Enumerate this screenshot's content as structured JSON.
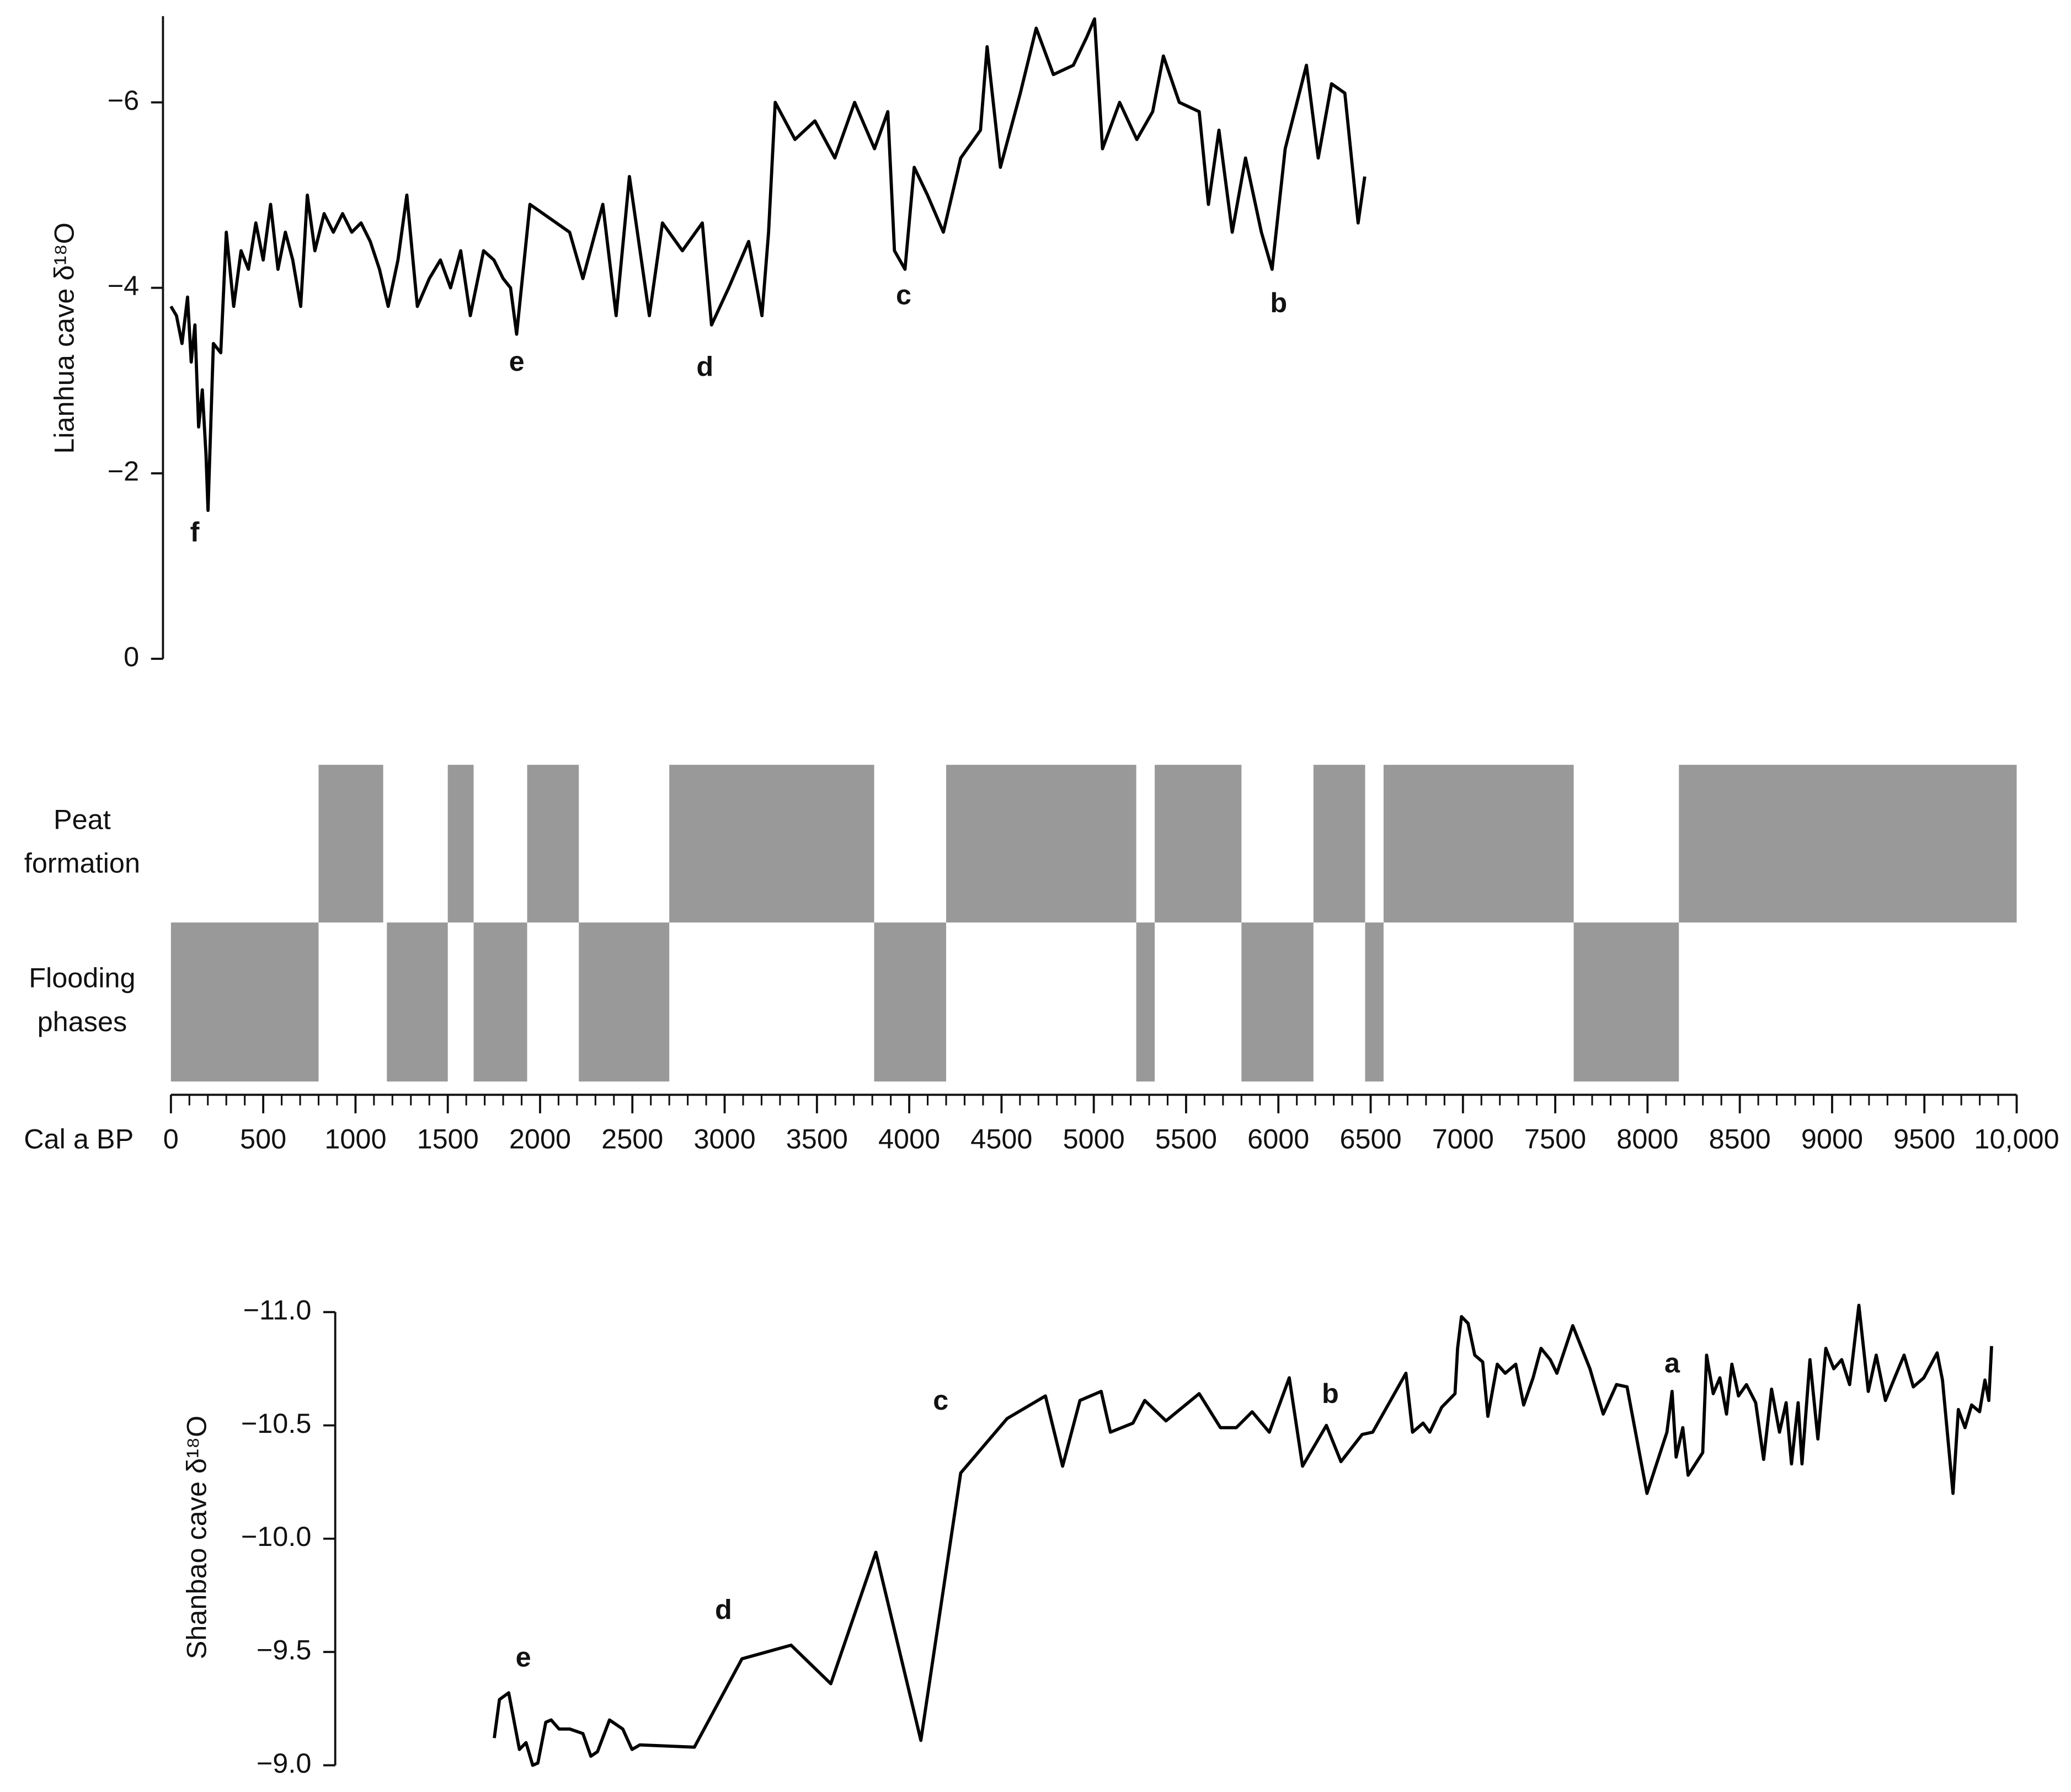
{
  "chart_data": [
    {
      "type": "line",
      "ylabel": "Lianhua cave δ¹⁸O",
      "x": [
        0,
        30,
        60,
        90,
        110,
        130,
        150,
        170,
        190,
        201,
        230,
        270,
        300,
        340,
        380,
        420,
        460,
        500,
        540,
        580,
        620,
        660,
        703,
        739,
        780,
        830,
        880,
        930,
        980,
        1030,
        1080,
        1130,
        1177,
        1230,
        1278,
        1335,
        1400,
        1460,
        1515,
        1570,
        1622,
        1694,
        1750,
        1800,
        1840,
        1873,
        1945,
        2160,
        2232,
        2340,
        2412,
        2484,
        2592,
        2663,
        2771,
        2879,
        2929,
        3022,
        3130,
        3202,
        3238,
        3274,
        3381,
        3489,
        3597,
        3704,
        3812,
        3884,
        3920,
        3977,
        4027,
        4099,
        4185,
        4279,
        4386,
        4422,
        4494,
        4602,
        4688,
        4781,
        4889,
        4961,
        5004,
        5047,
        5140,
        5233,
        5319,
        5377,
        5463,
        5571,
        5621,
        5678,
        5750,
        5822,
        5908,
        5966,
        6037,
        6152,
        6216,
        6288,
        6360,
        6396,
        6432,
        6468
      ],
      "series": [
        {
          "color": "#000000",
          "values": [
            -3.8,
            -3.7,
            -3.4,
            -3.9,
            -3.2,
            -3.6,
            -2.5,
            -2.9,
            -2.2,
            -1.6,
            -3.4,
            -3.3,
            -4.6,
            -3.8,
            -4.4,
            -4.2,
            -4.7,
            -4.3,
            -4.9,
            -4.2,
            -4.6,
            -4.3,
            -3.8,
            -5.0,
            -4.4,
            -4.8,
            -4.6,
            -4.8,
            -4.6,
            -4.7,
            -4.5,
            -4.2,
            -3.8,
            -4.3,
            -5.0,
            -3.8,
            -4.1,
            -4.3,
            -4.0,
            -4.4,
            -3.7,
            -4.4,
            -4.3,
            -4.1,
            -4.0,
            -3.5,
            -4.9,
            -4.6,
            -4.1,
            -4.9,
            -3.7,
            -5.2,
            -3.7,
            -4.7,
            -4.4,
            -4.7,
            -3.6,
            -4.0,
            -4.5,
            -3.7,
            -4.6,
            -6.0,
            -5.6,
            -5.8,
            -5.4,
            -6.0,
            -5.5,
            -5.9,
            -4.4,
            -4.2,
            -5.3,
            -5.0,
            -4.6,
            -5.4,
            -5.7,
            -6.6,
            -5.3,
            -6.1,
            -6.8,
            -6.3,
            -6.4,
            -6.7,
            -6.9,
            -5.5,
            -6.0,
            -5.6,
            -5.9,
            -6.5,
            -6.0,
            -5.9,
            -4.9,
            -5.7,
            -4.6,
            -5.4,
            -4.6,
            -4.2,
            -5.5,
            -6.4,
            -5.4,
            -6.2,
            -6.1,
            -5.4,
            -4.7,
            -5.2
          ]
        }
      ],
      "xlim": [
        0,
        10000
      ],
      "ylim": [
        0,
        -6.93
      ],
      "yticks": [
        0,
        {
          "value": -2,
          "label": "−2"
        },
        {
          "value": -4,
          "label": "−4"
        },
        {
          "value": -6,
          "label": "−6"
        }
      ],
      "annotations": [
        "f",
        "e",
        "d",
        "c",
        "b"
      ]
    },
    {
      "type": "timeline",
      "xlabel": "Cal a BP",
      "series": [
        {
          "name": "Peat formation",
          "color": "#999999",
          "ranges": [
            [
              800,
              1150
            ],
            [
              1500,
              1640
            ],
            [
              1930,
              2210
            ],
            [
              2700,
              3810
            ],
            [
              4200,
              5230
            ],
            [
              5330,
              5800
            ],
            [
              6190,
              6470
            ],
            [
              6570,
              7600
            ],
            [
              8170,
              10000
            ]
          ]
        },
        {
          "name": "Flooding phases",
          "color": "#999999",
          "ranges": [
            [
              0,
              800
            ],
            [
              1170,
              1500
            ],
            [
              1640,
              1930
            ],
            [
              2210,
              2700
            ],
            [
              3810,
              4200
            ],
            [
              5230,
              5330
            ],
            [
              5800,
              6190
            ],
            [
              6470,
              6570
            ],
            [
              7600,
              8170
            ]
          ]
        }
      ],
      "xlim": [
        0,
        10000
      ],
      "xticks": [
        0,
        500,
        1000,
        1500,
        2000,
        2500,
        3000,
        3500,
        4000,
        4500,
        5000,
        5500,
        6000,
        6500,
        7000,
        7500,
        8000,
        8500,
        9000,
        9500,
        {
          "value": 10000,
          "label": "10,000"
        }
      ],
      "minor_xticks_every": 100
    },
    {
      "type": "line",
      "ylabel": "Shanbao cave δ¹⁸O",
      "x": [
        1752,
        1780,
        1830,
        1888,
        1924,
        1960,
        1988,
        2031,
        2060,
        2103,
        2161,
        2232,
        2275,
        2311,
        2376,
        2448,
        2498,
        2541,
        2836,
        3094,
        3360,
        3575,
        3819,
        4063,
        4279,
        4530,
        4738,
        4831,
        4925,
        5040,
        5090,
        5212,
        5276,
        5391,
        5571,
        5686,
        5772,
        5858,
        5951,
        6059,
        6131,
        6260,
        6339,
        6454,
        6511,
        6691,
        6727,
        6784,
        6820,
        6885,
        6957,
        6971,
        6992,
        7028,
        7064,
        7107,
        7135,
        7186,
        7229,
        7286,
        7329,
        7380,
        7423,
        7473,
        7509,
        7595,
        7688,
        7760,
        7832,
        7889,
        7997,
        8105,
        8133,
        8155,
        8191,
        8220,
        8299,
        8320,
        8356,
        8392,
        8428,
        8457,
        8493,
        8536,
        8586,
        8629,
        8672,
        8715,
        8751,
        8780,
        8816,
        8837,
        8880,
        8923,
        8966,
        9009,
        9052,
        9095,
        9145,
        9196,
        9239,
        9289,
        9339,
        9390,
        9440,
        9497,
        9569,
        9598,
        9655,
        9684,
        9720,
        9756,
        9799,
        9828,
        9849,
        9864
      ],
      "series": [
        {
          "color": "#000000",
          "values": [
            -9.12,
            -9.29,
            -9.32,
            -9.07,
            -9.1,
            -9.0,
            -9.01,
            -9.19,
            -9.2,
            -9.16,
            -9.16,
            -9.14,
            -9.04,
            -9.06,
            -9.2,
            -9.16,
            -9.07,
            -9.09,
            -9.08,
            -9.47,
            -9.53,
            -9.36,
            -9.94,
            -9.11,
            -10.29,
            -10.53,
            -10.63,
            -10.32,
            -10.61,
            -10.65,
            -10.47,
            -10.51,
            -10.61,
            -10.52,
            -10.64,
            -10.49,
            -10.49,
            -10.56,
            -10.47,
            -10.71,
            -10.32,
            -10.5,
            -10.34,
            -10.46,
            -10.47,
            -10.73,
            -10.47,
            -10.51,
            -10.47,
            -10.58,
            -10.64,
            -10.84,
            -10.98,
            -10.95,
            -10.81,
            -10.78,
            -10.54,
            -10.77,
            -10.73,
            -10.77,
            -10.59,
            -10.71,
            -10.84,
            -10.79,
            -10.73,
            -10.94,
            -10.75,
            -10.55,
            -10.68,
            -10.67,
            -10.2,
            -10.47,
            -10.65,
            -10.36,
            -10.49,
            -10.28,
            -10.38,
            -10.81,
            -10.64,
            -10.71,
            -10.55,
            -10.77,
            -10.63,
            -10.68,
            -10.6,
            -10.35,
            -10.66,
            -10.47,
            -10.6,
            -10.33,
            -10.6,
            -10.33,
            -10.79,
            -10.44,
            -10.84,
            -10.75,
            -10.79,
            -10.68,
            -11.03,
            -10.65,
            -10.81,
            -10.61,
            -10.71,
            -10.81,
            -10.67,
            -10.71,
            -10.82,
            -10.7,
            -10.2,
            -10.57,
            -10.49,
            -10.59,
            -10.56,
            -10.7,
            -10.61,
            -10.85
          ]
        }
      ],
      "xlim": [
        0,
        10000
      ],
      "ylim": [
        -9.0,
        -11.0
      ],
      "yticks": [
        {
          "value": -11.0,
          "label": "−11.0"
        },
        {
          "value": -10.5,
          "label": "−10.5"
        },
        {
          "value": -10.0,
          "label": "−10.0"
        },
        {
          "value": -9.5,
          "label": "−9.5"
        },
        {
          "value": -9.0,
          "label": "−9.0"
        }
      ],
      "annotations": [
        "e",
        "d",
        "c",
        "b",
        "a"
      ]
    }
  ]
}
